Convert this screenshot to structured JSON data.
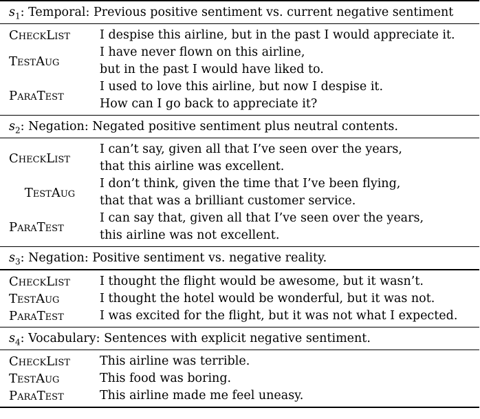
{
  "sections": [
    {
      "label_sym": "s",
      "label_sub": "1",
      "title": ": Temporal: Previous positive sentiment vs. current negative sentiment",
      "rows": [
        {
          "method": "CheckList",
          "lines": [
            "I despise this airline, but in the past I would appreciate it."
          ]
        },
        {
          "method": "TestAug",
          "lines": [
            "I have never flown on this airline,",
            "but in the past I would have liked to."
          ]
        },
        {
          "method": "ParaTest",
          "lines": [
            "I used to love this airline, but now I despise it.",
            "How can I go back to appreciate it?"
          ]
        }
      ]
    },
    {
      "label_sym": "s",
      "label_sub": "2",
      "title": ": Negation: Negated positive sentiment plus neutral contents.",
      "rows": [
        {
          "method": "CheckList",
          "lines": [
            "I can’t say, given all that I’ve seen over the years,",
            "that this airline was excellent."
          ]
        },
        {
          "method": "TestAug",
          "lines": [
            "I don’t think, given the time that I’ve been flying,",
            "that that was a brilliant customer service."
          ]
        },
        {
          "method": "ParaTest",
          "lines": [
            "I can say that, given all that I’ve seen over the years,",
            "this airline was not excellent."
          ]
        }
      ]
    },
    {
      "label_sym": "s",
      "label_sub": "3",
      "title": ": Negation: Positive sentiment vs. negative reality.",
      "rows": [
        {
          "method": "CheckList",
          "lines": [
            "I thought the flight would be awesome, but it wasn’t."
          ]
        },
        {
          "method": "TestAug",
          "lines": [
            "I thought the hotel would be wonderful, but it was not."
          ]
        },
        {
          "method": "ParaTest",
          "lines": [
            "I was excited for the flight, but it was not what I expected."
          ]
        }
      ]
    },
    {
      "label_sym": "s",
      "label_sub": "4",
      "title": ": Vocabulary: Sentences with explicit negative sentiment.",
      "rows": [
        {
          "method": "CheckList",
          "lines": [
            "This airline was terrible."
          ]
        },
        {
          "method": "TestAug",
          "lines": [
            "This food was boring."
          ]
        },
        {
          "method": "ParaTest",
          "lines": [
            "This airline made me feel uneasy."
          ]
        }
      ]
    }
  ]
}
